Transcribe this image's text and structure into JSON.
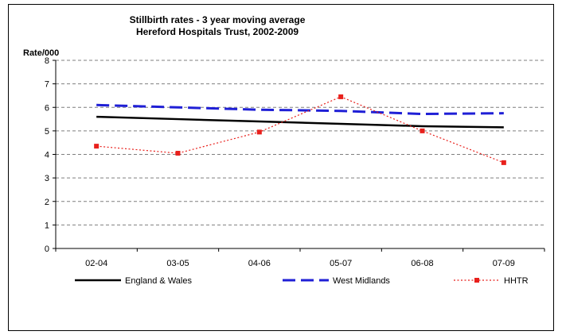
{
  "chart_data": {
    "type": "line",
    "title": "Stillbirth rates - 3 year moving average",
    "subtitle": "Hereford Hospitals Trust, 2002-2009",
    "ylabel": "Rate/000",
    "xlabel": "",
    "categories": [
      "02-04",
      "03-05",
      "04-06",
      "05-07",
      "06-08",
      "07-09"
    ],
    "ylim": [
      0,
      8
    ],
    "yticks": [
      0,
      1,
      2,
      3,
      4,
      5,
      6,
      7,
      8
    ],
    "grid": true,
    "legend_position": "bottom",
    "series": [
      {
        "name": "England & Wales",
        "values": [
          5.6,
          5.5,
          5.4,
          5.3,
          5.2,
          5.15
        ],
        "color": "#000000",
        "style": "solid"
      },
      {
        "name": "West Midlands",
        "values": [
          6.1,
          6.0,
          5.9,
          5.85,
          5.72,
          5.75
        ],
        "color": "#1f1fd6",
        "style": "dashed"
      },
      {
        "name": "HHTR",
        "values": [
          4.35,
          4.05,
          4.95,
          6.45,
          5.0,
          3.65
        ],
        "color": "#e8201c",
        "style": "dotted",
        "marker": "square"
      }
    ]
  }
}
